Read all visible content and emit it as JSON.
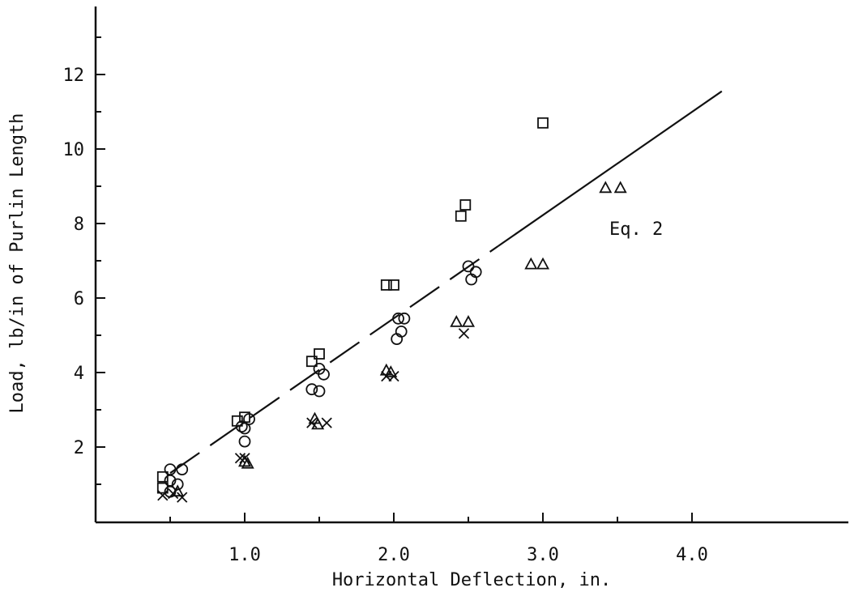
{
  "chart_data": {
    "type": "scatter",
    "title": "",
    "xlabel": "Horizontal Deflection, in.",
    "ylabel": "Load, lb/in of Purlin Length",
    "xlim": [
      0,
      5.0
    ],
    "ylim": [
      -1,
      13.3
    ],
    "x_ticks": [
      {
        "v": 1.0,
        "label": "1.0"
      },
      {
        "v": 2.0,
        "label": "2.0"
      },
      {
        "v": 3.0,
        "label": "3.0"
      },
      {
        "v": 4.0,
        "label": "4.0"
      }
    ],
    "x_minor_ticks": [
      0.5,
      1.5,
      2.5,
      3.5
    ],
    "y_ticks": [
      {
        "v": 2,
        "label": "2"
      },
      {
        "v": 4,
        "label": "4"
      },
      {
        "v": 6,
        "label": "6"
      },
      {
        "v": 8,
        "label": "8"
      },
      {
        "v": 10,
        "label": "10"
      },
      {
        "v": 12,
        "label": "12"
      }
    ],
    "y_minor_ticks": [
      1,
      3,
      5,
      7,
      9,
      11,
      13
    ],
    "grid": false,
    "series": [
      {
        "marker": "square",
        "points": [
          [
            0.45,
            1.2
          ],
          [
            0.45,
            0.9
          ],
          [
            0.95,
            2.7
          ],
          [
            1.0,
            2.8
          ],
          [
            1.45,
            4.3
          ],
          [
            1.5,
            4.5
          ],
          [
            1.95,
            6.35
          ],
          [
            2.0,
            6.35
          ],
          [
            2.45,
            8.2
          ],
          [
            2.48,
            8.5
          ],
          [
            3.0,
            10.7
          ]
        ]
      },
      {
        "marker": "circle",
        "points": [
          [
            0.5,
            1.4
          ],
          [
            0.58,
            1.4
          ],
          [
            0.5,
            1.1
          ],
          [
            0.55,
            1.0
          ],
          [
            0.5,
            0.8
          ],
          [
            1.0,
            2.5
          ],
          [
            1.0,
            2.15
          ],
          [
            1.03,
            2.75
          ],
          [
            0.98,
            2.55
          ],
          [
            1.45,
            3.55
          ],
          [
            1.5,
            3.5
          ],
          [
            1.5,
            4.1
          ],
          [
            1.53,
            3.95
          ],
          [
            2.03,
            5.45
          ],
          [
            2.07,
            5.45
          ],
          [
            2.05,
            5.1
          ],
          [
            2.02,
            4.9
          ],
          [
            2.5,
            6.85
          ],
          [
            2.55,
            6.7
          ],
          [
            2.52,
            6.5
          ]
        ]
      },
      {
        "marker": "triangle",
        "points": [
          [
            0.55,
            0.8
          ],
          [
            1.0,
            1.6
          ],
          [
            1.02,
            1.55
          ],
          [
            1.47,
            2.75
          ],
          [
            1.49,
            2.6
          ],
          [
            1.95,
            4.05
          ],
          [
            1.98,
            4.0
          ],
          [
            2.42,
            5.35
          ],
          [
            2.5,
            5.35
          ],
          [
            2.92,
            6.9
          ],
          [
            3.0,
            6.9
          ],
          [
            3.42,
            8.95
          ],
          [
            3.52,
            8.95
          ]
        ]
      },
      {
        "marker": "x",
        "points": [
          [
            0.45,
            0.7
          ],
          [
            0.52,
            0.75
          ],
          [
            0.58,
            0.65
          ],
          [
            0.97,
            1.7
          ],
          [
            1.0,
            1.7
          ],
          [
            1.45,
            2.65
          ],
          [
            1.55,
            2.65
          ],
          [
            1.95,
            3.9
          ],
          [
            2.0,
            3.9
          ],
          [
            2.47,
            5.05
          ]
        ]
      }
    ],
    "fit_line": {
      "x": [
        0.5,
        4.2
      ],
      "y": [
        1.3,
        11.55
      ],
      "style": "dashed-then-solid",
      "label": "Eq. 2"
    }
  }
}
